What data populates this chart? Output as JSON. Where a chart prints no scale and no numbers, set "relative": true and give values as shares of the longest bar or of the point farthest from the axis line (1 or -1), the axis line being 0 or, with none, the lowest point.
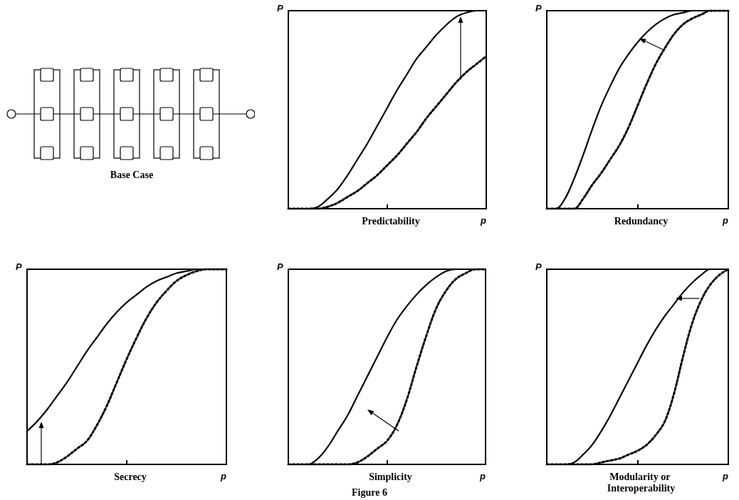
{
  "chart_data": [
    {
      "type": "other",
      "title": "Base Case",
      "annotations": [
        "Figure 6"
      ]
    },
    {
      "type": "line",
      "title": "Predictability",
      "xlabel": "p",
      "ylabel": "P",
      "relative": true,
      "grid": false,
      "marker": "none",
      "categories": [
        null,
        null,
        null,
        null,
        null,
        null,
        null,
        null,
        null,
        null,
        null,
        null,
        null,
        null,
        null,
        null,
        null,
        null,
        null,
        null,
        null
      ],
      "series": [
        {
          "color": "#000000",
          "line_style": "solid",
          "values": [
            0,
            0,
            0,
            0.01,
            0.05,
            0.1,
            0.17,
            0.25,
            0.33,
            0.42,
            0.51,
            0.6,
            0.68,
            0.76,
            0.82,
            0.88,
            0.93,
            0.97,
            0.99,
            1,
            1
          ]
        },
        {
          "color": "#000000",
          "line_style": "dotted",
          "values": [
            0,
            0,
            0,
            0,
            0.01,
            0.03,
            0.06,
            0.09,
            0.13,
            0.17,
            0.22,
            0.27,
            0.33,
            0.39,
            0.46,
            0.52,
            0.58,
            0.64,
            0.69,
            0.73,
            0.77
          ]
        }
      ]
    },
    {
      "type": "line",
      "title": "Redundancy",
      "xlabel": "p",
      "ylabel": "P",
      "relative": true,
      "grid": false,
      "marker": "none",
      "categories": [
        null,
        null,
        null,
        null,
        null,
        null,
        null,
        null,
        null,
        null,
        null,
        null,
        null,
        null,
        null,
        null,
        null,
        null,
        null,
        null,
        null
      ],
      "series": [
        {
          "color": "#000000",
          "line_style": "solid",
          "values": [
            0,
            0,
            0.05,
            0.15,
            0.27,
            0.4,
            0.52,
            0.62,
            0.71,
            0.78,
            0.84,
            0.89,
            0.93,
            0.96,
            0.98,
            0.99,
            1,
            1,
            1,
            1,
            1
          ]
        },
        {
          "color": "#000000",
          "line_style": "dotted",
          "values": [
            0,
            0,
            0,
            0,
            0.05,
            0.12,
            0.18,
            0.25,
            0.32,
            0.41,
            0.52,
            0.63,
            0.73,
            0.81,
            0.88,
            0.93,
            0.96,
            0.98,
            1,
            1,
            1
          ]
        }
      ]
    },
    {
      "type": "line",
      "title": "Secrecy",
      "xlabel": "p",
      "ylabel": "P",
      "relative": true,
      "grid": false,
      "marker": "none",
      "categories": [
        null,
        null,
        null,
        null,
        null,
        null,
        null,
        null,
        null,
        null,
        null,
        null,
        null,
        null,
        null,
        null,
        null,
        null,
        null,
        null,
        null
      ],
      "series": [
        {
          "color": "#000000",
          "line_style": "solid",
          "values": [
            0.17,
            0.22,
            0.28,
            0.35,
            0.42,
            0.5,
            0.58,
            0.65,
            0.72,
            0.78,
            0.83,
            0.87,
            0.91,
            0.94,
            0.96,
            0.98,
            0.99,
            1,
            1,
            1,
            1
          ]
        },
        {
          "color": "#000000",
          "line_style": "dotted",
          "values": [
            0,
            0,
            0,
            0.01,
            0.04,
            0.08,
            0.12,
            0.2,
            0.3,
            0.42,
            0.54,
            0.65,
            0.75,
            0.83,
            0.89,
            0.94,
            0.97,
            0.99,
            1,
            1,
            1
          ]
        }
      ]
    },
    {
      "type": "line",
      "title": "Simplicity",
      "xlabel": "p",
      "ylabel": "P",
      "relative": true,
      "grid": false,
      "marker": "none",
      "categories": [
        null,
        null,
        null,
        null,
        null,
        null,
        null,
        null,
        null,
        null,
        null,
        null,
        null,
        null,
        null,
        null,
        null,
        null,
        null,
        null,
        null
      ],
      "series": [
        {
          "color": "#000000",
          "line_style": "solid",
          "values": [
            0,
            0,
            0,
            0.03,
            0.09,
            0.17,
            0.25,
            0.35,
            0.45,
            0.55,
            0.65,
            0.74,
            0.81,
            0.87,
            0.92,
            0.96,
            0.99,
            1,
            1,
            1,
            1
          ]
        },
        {
          "color": "#000000",
          "line_style": "dotted",
          "values": [
            0,
            0,
            0,
            0,
            0,
            0,
            0,
            0.01,
            0.04,
            0.08,
            0.12,
            0.2,
            0.33,
            0.5,
            0.66,
            0.8,
            0.89,
            0.95,
            0.98,
            1,
            1
          ]
        }
      ]
    },
    {
      "type": "line",
      "title": "Modularity or Interoperability",
      "xlabel": "p",
      "ylabel": "P",
      "relative": true,
      "grid": false,
      "marker": "none",
      "categories": [
        null,
        null,
        null,
        null,
        null,
        null,
        null,
        null,
        null,
        null,
        null,
        null,
        null,
        null,
        null,
        null,
        null,
        null,
        null,
        null,
        null
      ],
      "series": [
        {
          "color": "#000000",
          "line_style": "solid",
          "values": [
            0,
            0,
            0,
            0.01,
            0.05,
            0.1,
            0.17,
            0.25,
            0.34,
            0.43,
            0.52,
            0.61,
            0.69,
            0.76,
            0.82,
            0.88,
            0.93,
            0.97,
            1,
            1,
            1
          ]
        },
        {
          "color": "#000000",
          "line_style": "dotted",
          "values": [
            0,
            0,
            0,
            0,
            0,
            0,
            0.01,
            0.02,
            0.03,
            0.05,
            0.07,
            0.1,
            0.15,
            0.22,
            0.36,
            0.55,
            0.72,
            0.84,
            0.92,
            0.97,
            1
          ]
        }
      ]
    }
  ]
}
